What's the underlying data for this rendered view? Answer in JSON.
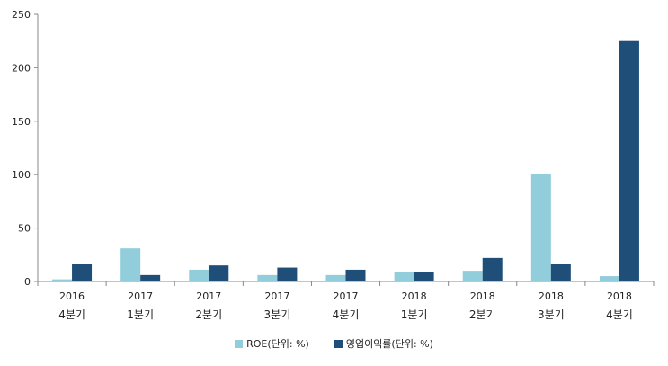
{
  "chart_data": {
    "type": "bar",
    "categories": [
      [
        "2016",
        "4분기"
      ],
      [
        "2017",
        "1분기"
      ],
      [
        "2017",
        "2분기"
      ],
      [
        "2017",
        "3분기"
      ],
      [
        "2017",
        "4분기"
      ],
      [
        "2018",
        "1분기"
      ],
      [
        "2018",
        "2분기"
      ],
      [
        "2018",
        "3분기"
      ],
      [
        "2018",
        "4분기"
      ]
    ],
    "series": [
      {
        "name": "ROE(단위: %)",
        "color": "#92cddc",
        "values": [
          2,
          31,
          11,
          6,
          6,
          9,
          10,
          101,
          5
        ]
      },
      {
        "name": "영업이익률(단위: %)",
        "color": "#1f4e79",
        "values": [
          16,
          6,
          15,
          13,
          11,
          9,
          22,
          16,
          225
        ]
      }
    ],
    "ylim": [
      0,
      250
    ],
    "yticks": [
      0,
      50,
      100,
      150,
      200,
      250
    ],
    "grid": false,
    "legend": "bottom-center"
  }
}
